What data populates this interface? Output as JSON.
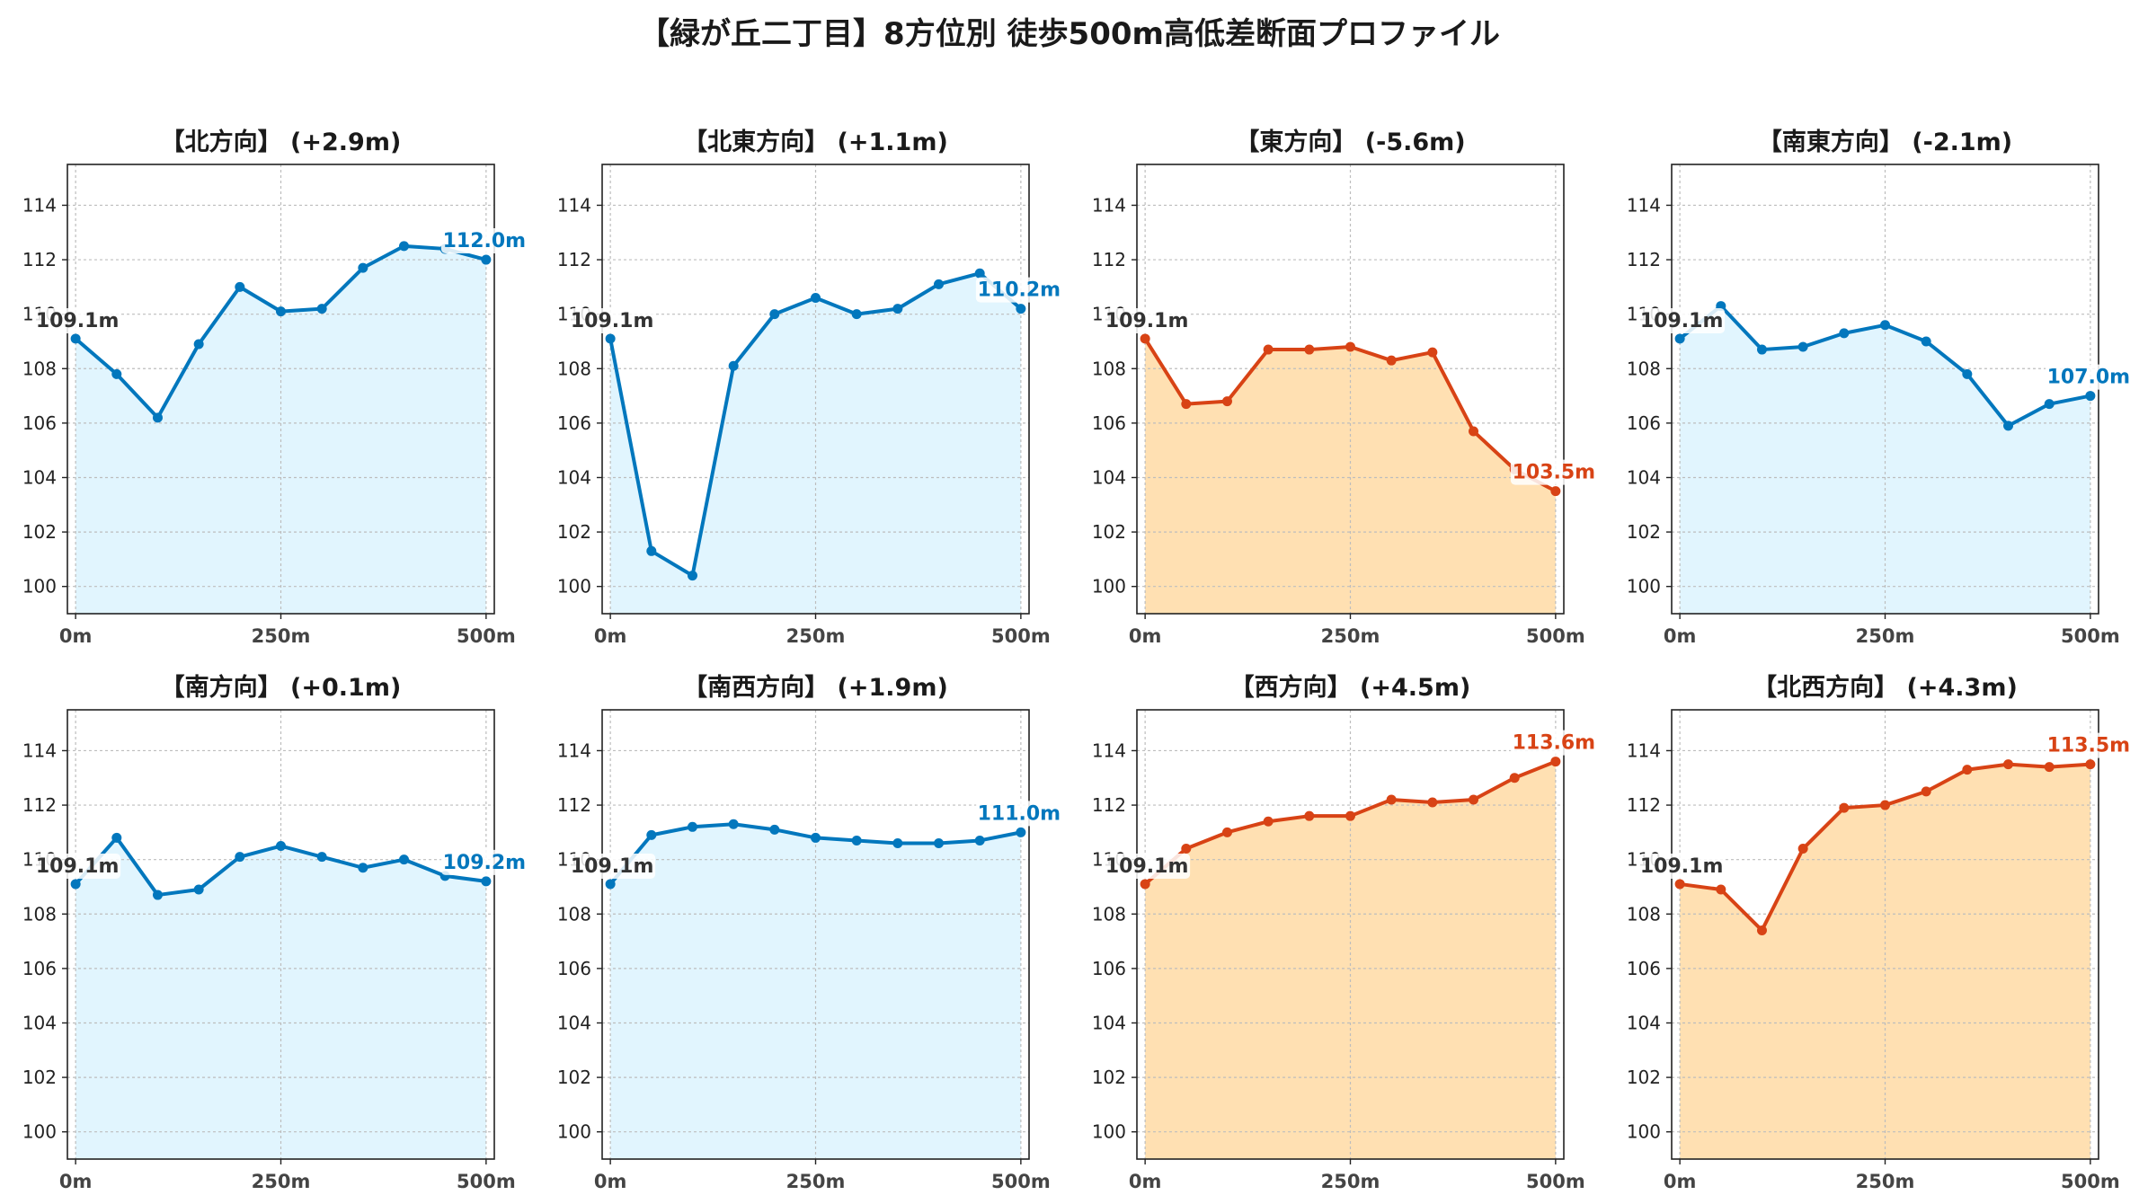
{
  "suptitle": "【緑が丘二丁目】8方位別 徒歩500m高低差断面プロファイル",
  "colors": {
    "up": "#D84315",
    "down": "#0277BD",
    "up_fill": "#FFE0B2",
    "down_fill": "#E1F5FE",
    "start_label": "#333333"
  },
  "chart_data": [
    {
      "type": "area",
      "title": "【北方向】 (+2.9m)",
      "trend": "down",
      "x": [
        0,
        50,
        100,
        150,
        200,
        250,
        300,
        350,
        400,
        450,
        500
      ],
      "xticks": [
        "0m",
        "250m",
        "500m"
      ],
      "xtick_values": [
        0,
        250,
        500
      ],
      "yticks": [
        "100",
        "102",
        "104",
        "106",
        "108",
        "110",
        "112",
        "114"
      ],
      "ylim": [
        99,
        115.5
      ],
      "values": [
        109.1,
        107.8,
        106.2,
        108.9,
        111.0,
        110.1,
        110.2,
        111.7,
        112.5,
        112.4,
        112.0
      ],
      "start_label": "109.1m",
      "end_label": "112.0m"
    },
    {
      "type": "area",
      "title": "【北東方向】 (+1.1m)",
      "trend": "down",
      "x": [
        0,
        50,
        100,
        150,
        200,
        250,
        300,
        350,
        400,
        450,
        500
      ],
      "xticks": [
        "0m",
        "250m",
        "500m"
      ],
      "xtick_values": [
        0,
        250,
        500
      ],
      "yticks": [
        "100",
        "102",
        "104",
        "106",
        "108",
        "110",
        "112",
        "114"
      ],
      "ylim": [
        99,
        115.5
      ],
      "values": [
        109.1,
        101.3,
        100.4,
        108.1,
        110.0,
        110.6,
        110.0,
        110.2,
        111.1,
        111.5,
        110.2
      ],
      "start_label": "109.1m",
      "end_label": "110.2m"
    },
    {
      "type": "area",
      "title": "【東方向】 (-5.6m)",
      "trend": "up",
      "x": [
        0,
        50,
        100,
        150,
        200,
        250,
        300,
        350,
        400,
        450,
        500
      ],
      "xticks": [
        "0m",
        "250m",
        "500m"
      ],
      "xtick_values": [
        0,
        250,
        500
      ],
      "yticks": [
        "100",
        "102",
        "104",
        "106",
        "108",
        "110",
        "112",
        "114"
      ],
      "ylim": [
        99,
        115.5
      ],
      "values": [
        109.1,
        106.7,
        106.8,
        108.7,
        108.7,
        108.8,
        108.3,
        108.6,
        105.7,
        104.3,
        103.5
      ],
      "start_label": "109.1m",
      "end_label": "103.5m"
    },
    {
      "type": "area",
      "title": "【南東方向】 (-2.1m)",
      "trend": "down",
      "x": [
        0,
        50,
        100,
        150,
        200,
        250,
        300,
        350,
        400,
        450,
        500
      ],
      "xticks": [
        "0m",
        "250m",
        "500m"
      ],
      "xtick_values": [
        0,
        250,
        500
      ],
      "yticks": [
        "100",
        "102",
        "104",
        "106",
        "108",
        "110",
        "112",
        "114"
      ],
      "ylim": [
        99,
        115.5
      ],
      "values": [
        109.1,
        110.3,
        108.7,
        108.8,
        109.3,
        109.6,
        109.0,
        107.8,
        105.9,
        106.7,
        107.0
      ],
      "start_label": "109.1m",
      "end_label": "107.0m"
    },
    {
      "type": "area",
      "title": "【南方向】 (+0.1m)",
      "trend": "down",
      "x": [
        0,
        50,
        100,
        150,
        200,
        250,
        300,
        350,
        400,
        450,
        500
      ],
      "xticks": [
        "0m",
        "250m",
        "500m"
      ],
      "xtick_values": [
        0,
        250,
        500
      ],
      "yticks": [
        "100",
        "102",
        "104",
        "106",
        "108",
        "110",
        "112",
        "114"
      ],
      "ylim": [
        99,
        115.5
      ],
      "values": [
        109.1,
        110.8,
        108.7,
        108.9,
        110.1,
        110.5,
        110.1,
        109.7,
        110.0,
        109.4,
        109.2
      ],
      "start_label": "109.1m",
      "end_label": "109.2m"
    },
    {
      "type": "area",
      "title": "【南西方向】 (+1.9m)",
      "trend": "down",
      "x": [
        0,
        50,
        100,
        150,
        200,
        250,
        300,
        350,
        400,
        450,
        500
      ],
      "xticks": [
        "0m",
        "250m",
        "500m"
      ],
      "xtick_values": [
        0,
        250,
        500
      ],
      "yticks": [
        "100",
        "102",
        "104",
        "106",
        "108",
        "110",
        "112",
        "114"
      ],
      "ylim": [
        99,
        115.5
      ],
      "values": [
        109.1,
        110.9,
        111.2,
        111.3,
        111.1,
        110.8,
        110.7,
        110.6,
        110.6,
        110.7,
        111.0
      ],
      "start_label": "109.1m",
      "end_label": "111.0m"
    },
    {
      "type": "area",
      "title": "【西方向】 (+4.5m)",
      "trend": "up",
      "x": [
        0,
        50,
        100,
        150,
        200,
        250,
        300,
        350,
        400,
        450,
        500
      ],
      "xticks": [
        "0m",
        "250m",
        "500m"
      ],
      "xtick_values": [
        0,
        250,
        500
      ],
      "yticks": [
        "100",
        "102",
        "104",
        "106",
        "108",
        "110",
        "112",
        "114"
      ],
      "ylim": [
        99,
        115.5
      ],
      "values": [
        109.1,
        110.4,
        111.0,
        111.4,
        111.6,
        111.6,
        112.2,
        112.1,
        112.2,
        113.0,
        113.6
      ],
      "start_label": "109.1m",
      "end_label": "113.6m"
    },
    {
      "type": "area",
      "title": "【北西方向】 (+4.3m)",
      "trend": "up",
      "x": [
        0,
        50,
        100,
        150,
        200,
        250,
        300,
        350,
        400,
        450,
        500
      ],
      "xticks": [
        "0m",
        "250m",
        "500m"
      ],
      "xtick_values": [
        0,
        250,
        500
      ],
      "yticks": [
        "100",
        "102",
        "104",
        "106",
        "108",
        "110",
        "112",
        "114"
      ],
      "ylim": [
        99,
        115.5
      ],
      "values": [
        109.1,
        108.9,
        107.4,
        110.4,
        111.9,
        112.0,
        112.5,
        113.3,
        113.5,
        113.4,
        113.5
      ],
      "start_label": "109.1m",
      "end_label": "113.5m"
    }
  ]
}
